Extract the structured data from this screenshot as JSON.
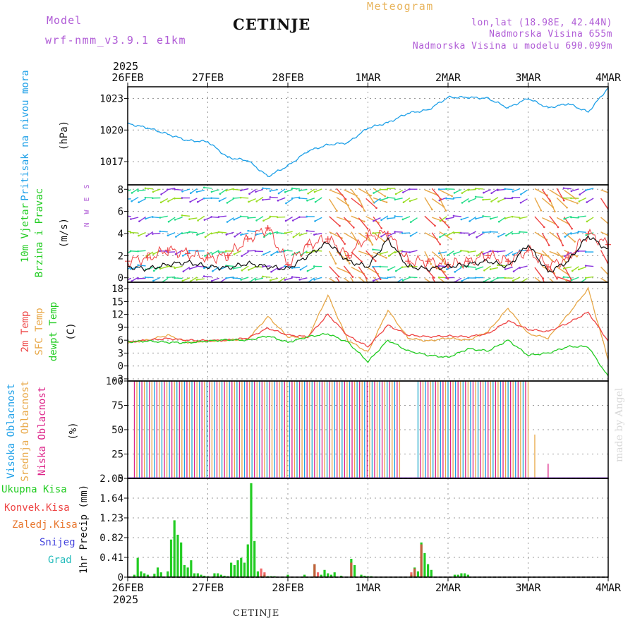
{
  "header": {
    "model_label": "Model",
    "model_run": "wrf-nmm_v3.9.1 e1km",
    "title": "CETINJE",
    "meteogram": "Meteogram",
    "lonlat": "lon,lat (18.98E, 42.44N)",
    "altitude": "Nadmorska Visina 655m",
    "model_altitude": "Nadmorska Visina u modelu 690.099m"
  },
  "footer": {
    "station": "CETINJE",
    "credit": "made by Angel"
  },
  "colors": {
    "pressure": "#1ea0e8",
    "temp2m": "#ee4444",
    "sfc": "#e8a848",
    "dew": "#22cc22",
    "high_cloud": "#1ea0e8",
    "mid_cloud": "#e8a848",
    "low_cloud": "#dd2288",
    "precip": "#22cc22",
    "conv": "#ee4444",
    "frozen": "#e87830",
    "snow": "#4444dd",
    "grad": "#22bbbb"
  },
  "axes": {
    "year_top": "2025",
    "year_bottom": "2025",
    "dates": [
      "26FEB",
      "27FEB",
      "28FEB",
      "1MAR",
      "2MAR",
      "3MAR",
      "4MAR"
    ]
  },
  "chart_data": [
    {
      "type": "line",
      "ylabel_1": "Pritisak na nivou mora",
      "ylabel_2": "(hPa)",
      "yticks": [
        "1017",
        "1020",
        "1023"
      ],
      "ylim": [
        1014.8,
        1024.1
      ],
      "x": [
        0,
        6,
        12,
        18,
        24,
        30,
        36,
        42,
        48,
        54,
        60,
        66,
        72,
        78,
        84,
        90,
        96,
        102,
        108,
        114,
        120,
        126,
        132,
        138,
        144
      ],
      "series": [
        {
          "values": [
            1020.6,
            1020.2,
            1019.6,
            1019.0,
            1018.9,
            1017.4,
            1017.1,
            1015.6,
            1016.6,
            1018.0,
            1018.6,
            1018.8,
            1020.2,
            1020.7,
            1021.6,
            1021.9,
            1023.1,
            1023.1,
            1023.0,
            1022.1,
            1023.0,
            1022.1,
            1022.5,
            1021.7,
            1024.0
          ]
        }
      ]
    },
    {
      "type": "line",
      "ylabel_1": "10m Vjetar",
      "ylabel_2": "Brzina i Pravac",
      "ylabel_3": "(m/s)",
      "compass": "N W E S",
      "yticks": [
        "0",
        "2",
        "4",
        "6",
        "8"
      ],
      "ylim": [
        -0.4,
        8.4
      ],
      "x": [
        0,
        6,
        12,
        18,
        24,
        30,
        36,
        42,
        48,
        54,
        60,
        66,
        72,
        78,
        84,
        90,
        96,
        102,
        108,
        114,
        120,
        126,
        132,
        138,
        144
      ],
      "series": [
        {
          "name": "speed",
          "values": [
            1.0,
            0.8,
            1.2,
            1.4,
            1.0,
            0.9,
            1.3,
            1.0,
            0.8,
            2.0,
            3.2,
            1.5,
            1.0,
            3.5,
            1.0,
            0.8,
            1.0,
            1.2,
            1.5,
            1.0,
            3.0,
            0.5,
            1.5,
            3.8,
            2.5
          ]
        },
        {
          "name": "gust",
          "values": [
            1.5,
            1.8,
            2.5,
            2.2,
            1.8,
            2.0,
            3.5,
            4.5,
            1.2,
            3.0,
            3.5,
            2.0,
            3.8,
            4.0,
            1.5,
            1.5,
            1.2,
            1.5,
            2.0,
            1.5,
            2.5,
            1.0,
            1.8,
            4.0,
            3.0
          ]
        }
      ]
    },
    {
      "type": "line",
      "ylabel_1": "2m Temp",
      "ylabel_2": "SFC Temp",
      "ylabel_3": "dewpt Temp",
      "ylabel_4": "(C)",
      "yticks": [
        "-3",
        "0",
        "3",
        "6",
        "9",
        "12",
        "15",
        "18"
      ],
      "ylim": [
        -3.5,
        19.5
      ],
      "x": [
        0,
        6,
        12,
        18,
        24,
        30,
        36,
        42,
        48,
        54,
        60,
        66,
        72,
        78,
        84,
        90,
        96,
        102,
        108,
        114,
        120,
        126,
        132,
        138,
        144
      ],
      "series": [
        {
          "name": "2m Temp",
          "values": [
            5.6,
            6.0,
            6.4,
            6.0,
            5.9,
            6.0,
            6.5,
            8.8,
            7.2,
            6.8,
            12.0,
            7.0,
            4.5,
            9.5,
            7.2,
            6.8,
            7.0,
            6.8,
            7.5,
            10.5,
            8.5,
            8.0,
            10.0,
            12.5,
            5.8
          ]
        },
        {
          "name": "SFC Temp",
          "values": [
            5.5,
            6.0,
            7.2,
            5.5,
            5.8,
            6.0,
            6.2,
            11.5,
            6.8,
            6.5,
            16.5,
            6.0,
            3.2,
            13.0,
            6.5,
            5.8,
            6.5,
            6.0,
            8.0,
            13.5,
            7.5,
            6.5,
            12.0,
            18.0,
            1.5
          ]
        },
        {
          "name": "dewpt Temp",
          "values": [
            5.6,
            5.8,
            5.5,
            5.4,
            5.8,
            6.1,
            6.0,
            7.0,
            5.5,
            6.8,
            7.5,
            5.5,
            1.0,
            6.0,
            3.5,
            2.5,
            2.0,
            4.0,
            3.5,
            6.0,
            2.5,
            3.0,
            4.5,
            4.5,
            -2.5
          ]
        }
      ]
    },
    {
      "type": "bar",
      "ylabel_1": "Visoka Oblacnost",
      "ylabel_2": "Srednja Oblacnost",
      "ylabel_3": "Niska Oblacnost",
      "ylabel_4": "(%)",
      "yticks": [
        "0",
        "25",
        "50",
        "75",
        "100"
      ],
      "ylim": [
        0,
        100
      ],
      "cloud_full": [
        [
          2,
          82
        ],
        [
          87,
          120
        ]
      ],
      "cloud_tail": [
        {
          "x": 122,
          "value": 45
        },
        {
          "x": 126,
          "value": 15
        }
      ]
    },
    {
      "type": "bar",
      "ylabel_1": "1hr Precip (mm)",
      "legend": [
        "Ukupna Kisa",
        "Konvek.Kisa",
        "Zaledj.Kisa",
        "Snijeg",
        "Grad"
      ],
      "yticks": [
        "0",
        "0.41",
        "0.82",
        "1.23",
        "1.64",
        "2.05"
      ],
      "ylim": [
        0,
        2.05
      ],
      "x": [
        2,
        3,
        4,
        5,
        6,
        8,
        9,
        10,
        12,
        13,
        14,
        15,
        16,
        17,
        18,
        19,
        20,
        21,
        22,
        23,
        24,
        26,
        27,
        28,
        29,
        30,
        31,
        32,
        33,
        34,
        35,
        36,
        37,
        38,
        39,
        40,
        41,
        42,
        43,
        44,
        48,
        53,
        56,
        58,
        59,
        60,
        61,
        62,
        64,
        67,
        68,
        70,
        71,
        72,
        73,
        85,
        86,
        87,
        88,
        89,
        90,
        91,
        98,
        99,
        100,
        101,
        102
      ],
      "values": [
        0.05,
        0.4,
        0.12,
        0.08,
        0.05,
        0.07,
        0.2,
        0.1,
        0.12,
        0.78,
        1.18,
        0.88,
        0.72,
        0.25,
        0.2,
        0.35,
        0.08,
        0.08,
        0.05,
        0.03,
        0.02,
        0.08,
        0.08,
        0.05,
        0.03,
        0.02,
        0.3,
        0.25,
        0.35,
        0.4,
        0.3,
        0.68,
        1.95,
        0.75,
        0.12,
        0.03,
        0.05,
        0.02,
        0.02,
        0.02,
        0.05,
        0.05,
        0.27,
        0.05,
        0.15,
        0.08,
        0.05,
        0.1,
        0.03,
        0.38,
        0.25,
        0.05,
        0.03,
        0.02,
        0.02,
        0.05,
        0.2,
        0.12,
        0.72,
        0.5,
        0.27,
        0.15,
        0.05,
        0.05,
        0.08,
        0.08,
        0.05
      ],
      "conv_x": [
        40,
        41,
        56,
        57,
        67,
        85,
        86,
        88
      ],
      "conv_values": [
        0.18,
        0.1,
        0.27,
        0.1,
        0.3,
        0.1,
        0.18,
        0.68
      ]
    }
  ]
}
